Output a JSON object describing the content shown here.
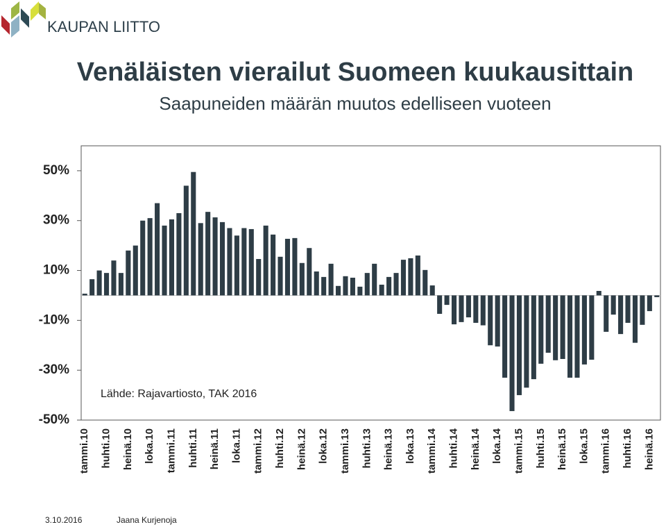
{
  "logo": "KAUPAN LIITTO",
  "source": "Lähde: Rajavartiosto, TAK 2016",
  "date": "3.10.2016",
  "author": "Jaana Kurjenoja",
  "chart_data": {
    "type": "bar",
    "title": "Venäläisten vierailut Suomeen kuukausittain",
    "subtitle": "Saapuneiden määrän muutos edelliseen vuoteen",
    "categories": [
      "tammi.10",
      null,
      null,
      "huhti.10",
      null,
      null,
      "heinä.10",
      null,
      null,
      "loka.10",
      null,
      null,
      "tammi.11",
      null,
      null,
      "huhti.11",
      null,
      null,
      "heinä.11",
      null,
      null,
      "loka.11",
      null,
      null,
      "tammi.12",
      null,
      null,
      "huhti.12",
      null,
      null,
      "heinä.12",
      null,
      null,
      "loka.12",
      null,
      null,
      "tammi.13",
      null,
      null,
      "huhti.13",
      null,
      null,
      "heinä.13",
      null,
      null,
      "loka.13",
      null,
      null,
      "tammi.14",
      null,
      null,
      "huhti.14",
      null,
      null,
      "heinä.14",
      null,
      null,
      "loka.14",
      null,
      null,
      "tammi.15",
      null,
      null,
      "huhti.15",
      null,
      null,
      "heinä.15",
      null,
      null,
      "loka.15",
      null,
      null,
      "tammi.16",
      null,
      null,
      "huhti.16",
      null,
      null,
      "heinä.16",
      null
    ],
    "values": [
      0.7,
      6.5,
      10,
      9,
      14,
      9,
      18,
      20,
      30,
      31,
      37,
      28,
      30.5,
      33,
      44,
      49.5,
      29,
      33.5,
      31.3,
      29.4,
      27,
      24,
      27,
      26.6,
      14.6,
      28,
      24.4,
      15.5,
      22.7,
      23,
      13,
      19,
      9.6,
      7.4,
      12.7,
      3.8,
      7.7,
      7.1,
      3.5,
      9,
      12.7,
      4.3,
      7.4,
      9,
      14.3,
      14.9,
      16,
      10.2,
      4,
      -7.4,
      -3.8,
      -11.6,
      -10.7,
      -8.8,
      -11,
      -12,
      -20,
      -20.5,
      -33,
      -46.4,
      -40,
      -37,
      -33.6,
      -27.4,
      -23,
      -26,
      -25.5,
      -33,
      -33,
      -27.7,
      -25.8,
      1.8,
      -14.6,
      -7.7,
      -15.5,
      -11,
      -19,
      -11.8,
      -6.3,
      -0.7
    ],
    "color": "#2e3d46",
    "ylim": [
      -50,
      60
    ],
    "yticks": [
      {
        "value": -50,
        "label": "-50%"
      },
      {
        "value": -30,
        "label": "-30%"
      },
      {
        "value": -10,
        "label": "-10%"
      },
      {
        "value": 10,
        "label": "10%"
      },
      {
        "value": 30,
        "label": "30%"
      },
      {
        "value": 50,
        "label": "50%"
      }
    ],
    "grid": false
  }
}
